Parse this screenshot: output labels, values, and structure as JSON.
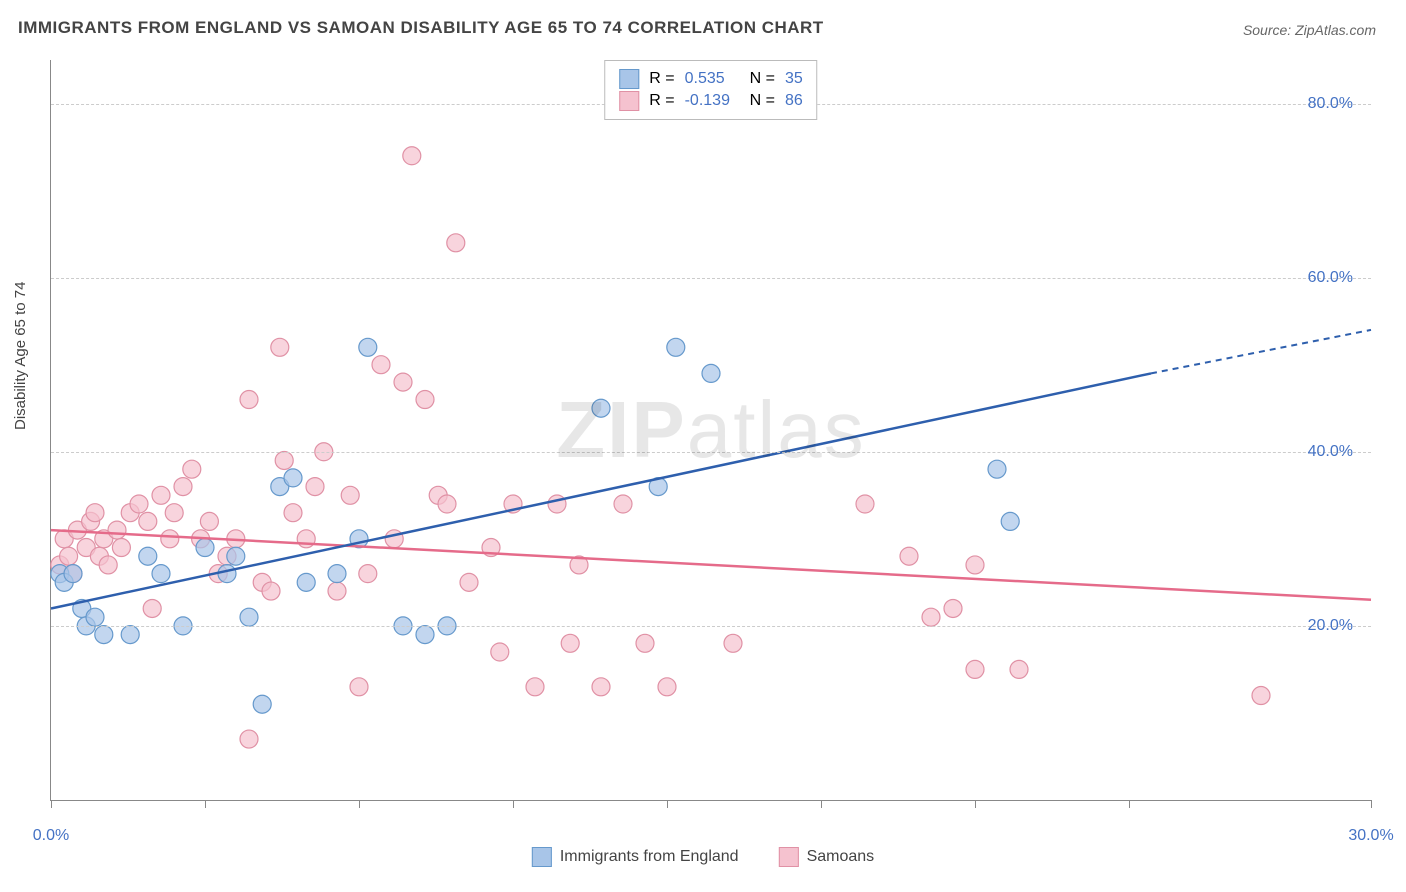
{
  "title": "IMMIGRANTS FROM ENGLAND VS SAMOAN DISABILITY AGE 65 TO 74 CORRELATION CHART",
  "source": "Source: ZipAtlas.com",
  "ylabel": "Disability Age 65 to 74",
  "watermark_prefix": "ZIP",
  "watermark_suffix": "atlas",
  "chart": {
    "type": "scatter",
    "xlim": [
      0,
      30
    ],
    "ylim": [
      0,
      85
    ],
    "x_ticks": [
      0,
      3.5,
      7,
      10.5,
      14,
      17.5,
      21,
      24.5,
      30
    ],
    "x_tick_labels": {
      "0": "0.0%",
      "30": "30.0%"
    },
    "y_ticks": [
      20,
      40,
      60,
      80
    ],
    "y_tick_labels": [
      "20.0%",
      "40.0%",
      "60.0%",
      "80.0%"
    ],
    "background_color": "#ffffff",
    "grid_color": "#cccccc",
    "axis_color": "#888888",
    "text_color": "#444444",
    "value_color": "#4472c4",
    "series": [
      {
        "name": "Immigrants from England",
        "color_fill": "#a8c5e8",
        "color_stroke": "#6699cc",
        "trend_color": "#2e5fad",
        "R": "0.535",
        "N": "35",
        "trend": {
          "x1": 0,
          "y1": 22,
          "x2": 25,
          "y2": 49,
          "x2_dash": 30,
          "y2_dash": 54
        },
        "points": [
          [
            0.2,
            26
          ],
          [
            0.3,
            25
          ],
          [
            0.5,
            26
          ],
          [
            0.7,
            22
          ],
          [
            0.8,
            20
          ],
          [
            1.0,
            21
          ],
          [
            1.2,
            19
          ],
          [
            1.8,
            19
          ],
          [
            2.2,
            28
          ],
          [
            2.5,
            26
          ],
          [
            3.0,
            20
          ],
          [
            3.5,
            29
          ],
          [
            4.0,
            26
          ],
          [
            4.2,
            28
          ],
          [
            4.5,
            21
          ],
          [
            4.8,
            11
          ],
          [
            5.2,
            36
          ],
          [
            5.5,
            37
          ],
          [
            5.8,
            25
          ],
          [
            6.5,
            26
          ],
          [
            7.0,
            30
          ],
          [
            7.2,
            52
          ],
          [
            8.0,
            20
          ],
          [
            8.5,
            19
          ],
          [
            9.0,
            20
          ],
          [
            12.5,
            45
          ],
          [
            13.8,
            36
          ],
          [
            14.2,
            52
          ],
          [
            15.0,
            49
          ],
          [
            21.5,
            38
          ],
          [
            21.8,
            32
          ]
        ]
      },
      {
        "name": "Samoans",
        "color_fill": "#f5c2cf",
        "color_stroke": "#e091a5",
        "trend_color": "#e56b8a",
        "R": "-0.139",
        "N": "86",
        "trend": {
          "x1": 0,
          "y1": 31,
          "x2": 30,
          "y2": 23
        },
        "points": [
          [
            0.2,
            27
          ],
          [
            0.3,
            30
          ],
          [
            0.4,
            28
          ],
          [
            0.5,
            26
          ],
          [
            0.6,
            31
          ],
          [
            0.8,
            29
          ],
          [
            0.9,
            32
          ],
          [
            1.0,
            33
          ],
          [
            1.1,
            28
          ],
          [
            1.2,
            30
          ],
          [
            1.3,
            27
          ],
          [
            1.5,
            31
          ],
          [
            1.6,
            29
          ],
          [
            1.8,
            33
          ],
          [
            2.0,
            34
          ],
          [
            2.2,
            32
          ],
          [
            2.3,
            22
          ],
          [
            2.5,
            35
          ],
          [
            2.7,
            30
          ],
          [
            2.8,
            33
          ],
          [
            3.0,
            36
          ],
          [
            3.2,
            38
          ],
          [
            3.4,
            30
          ],
          [
            3.6,
            32
          ],
          [
            3.8,
            26
          ],
          [
            4.0,
            28
          ],
          [
            4.2,
            30
          ],
          [
            4.5,
            46
          ],
          [
            4.8,
            25
          ],
          [
            4.5,
            7
          ],
          [
            5.0,
            24
          ],
          [
            5.2,
            52
          ],
          [
            5.3,
            39
          ],
          [
            5.5,
            33
          ],
          [
            5.8,
            30
          ],
          [
            6.0,
            36
          ],
          [
            6.2,
            40
          ],
          [
            6.5,
            24
          ],
          [
            6.8,
            35
          ],
          [
            7.0,
            13
          ],
          [
            7.2,
            26
          ],
          [
            7.5,
            50
          ],
          [
            7.8,
            30
          ],
          [
            8.0,
            48
          ],
          [
            8.2,
            74
          ],
          [
            8.5,
            46
          ],
          [
            8.8,
            35
          ],
          [
            9.0,
            34
          ],
          [
            9.2,
            64
          ],
          [
            9.5,
            25
          ],
          [
            10.0,
            29
          ],
          [
            10.2,
            17
          ],
          [
            10.5,
            34
          ],
          [
            11.0,
            13
          ],
          [
            11.5,
            34
          ],
          [
            11.8,
            18
          ],
          [
            12.0,
            27
          ],
          [
            12.5,
            13
          ],
          [
            13.0,
            34
          ],
          [
            13.5,
            18
          ],
          [
            14.0,
            13
          ],
          [
            15.5,
            18
          ],
          [
            18.5,
            34
          ],
          [
            19.5,
            28
          ],
          [
            20.0,
            21
          ],
          [
            20.5,
            22
          ],
          [
            21.0,
            15
          ],
          [
            22.0,
            15
          ],
          [
            21.0,
            27
          ],
          [
            27.5,
            12
          ]
        ]
      }
    ]
  },
  "legend_bottom": [
    {
      "label": "Immigrants from England",
      "fill": "#a8c5e8",
      "stroke": "#6699cc"
    },
    {
      "label": "Samoans",
      "fill": "#f5c2cf",
      "stroke": "#e091a5"
    }
  ]
}
